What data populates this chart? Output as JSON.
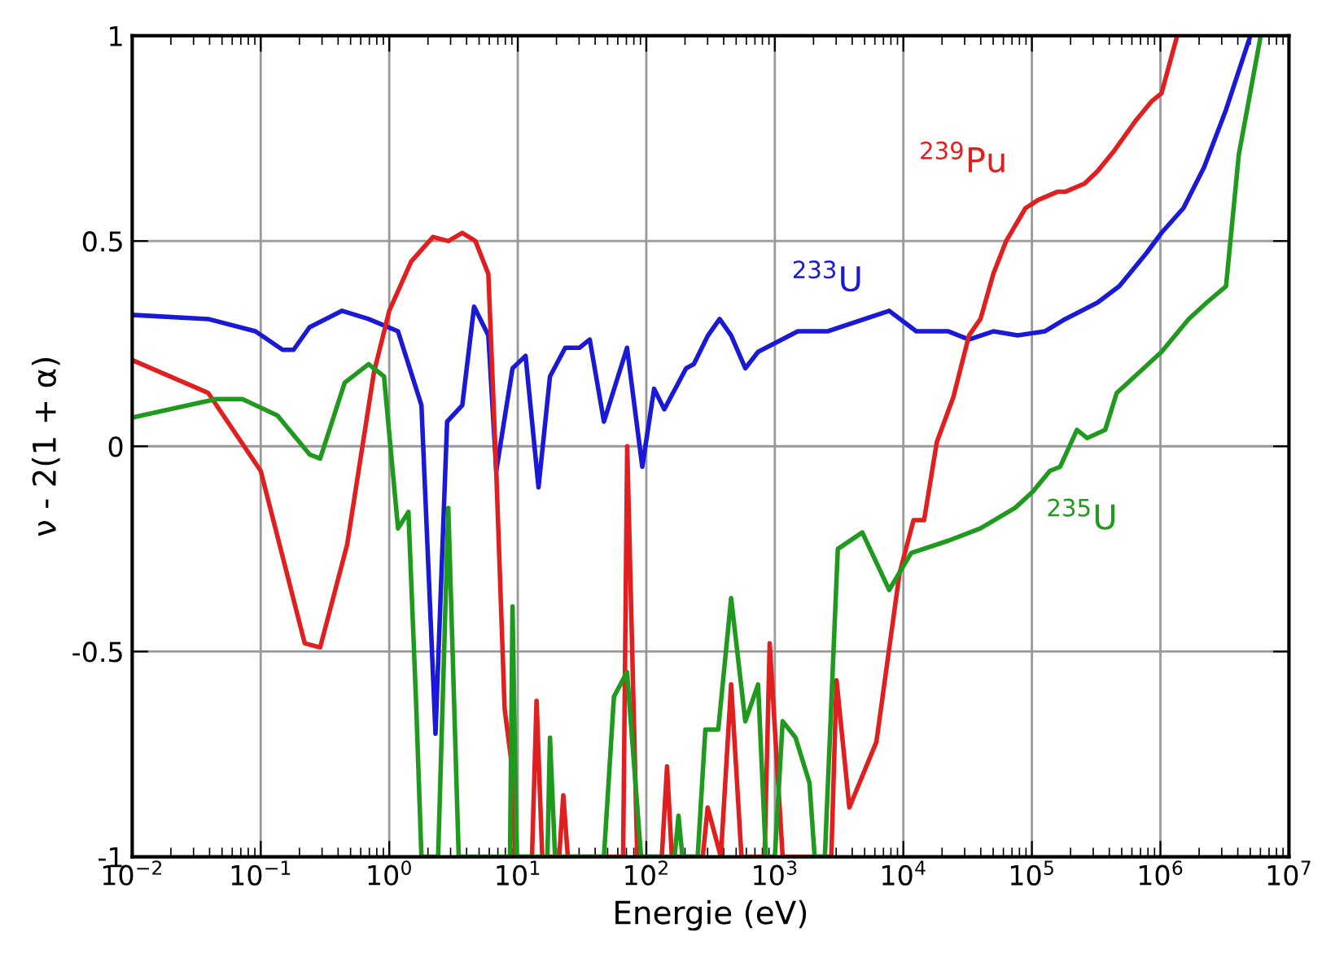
{
  "chart_data": {
    "type": "line",
    "xlabel": "Energie (eV)",
    "ylabel": "ν - 2(1 + α)",
    "log": "x",
    "xlim": [
      0.01,
      10000000
    ],
    "ylim": [
      -1,
      1
    ],
    "xticks": [
      {
        "value": 0.01,
        "label": "10$^{−2}$"
      },
      {
        "value": 0.1,
        "label": "10$^{−1}$"
      },
      {
        "value": 1,
        "label": "10$^{0}$"
      },
      {
        "value": 10,
        "label": "10$^{1}$"
      },
      {
        "value": 100,
        "label": "10$^{2}$"
      },
      {
        "value": 1000,
        "label": "10$^{3}$"
      },
      {
        "value": 10000,
        "label": "10$^{4}$"
      },
      {
        "value": 100000,
        "label": "10$^{5}$"
      },
      {
        "value": 1000000,
        "label": "10$^{6}$"
      },
      {
        "value": 10000000,
        "label": "10$^{7}$"
      }
    ],
    "yticks": [
      -1,
      -0.5,
      0,
      0.5,
      1
    ],
    "grid": true,
    "legend": false,
    "marker": "none",
    "line_style": "solid",
    "series": [
      {
        "name": "$^{233}$U",
        "color": "#1a1ad6",
        "x": [
          0.01,
          0.039,
          0.091,
          0.148,
          0.18,
          0.24,
          0.43,
          0.69,
          1.17,
          1.78,
          2.29,
          2.82,
          3.7,
          4.57,
          5.9,
          6.8,
          9.1,
          11.5,
          14.5,
          17.8,
          23.4,
          30.2,
          36.3,
          46.8,
          70.8,
          93,
          115,
          138,
          204,
          234,
          302,
          372,
          457,
          589,
          741,
          1510,
          2570,
          7760,
          12600,
          22400,
          32400,
          50100,
          77600,
          126000,
          182000,
          324000,
          479000,
          776000,
          1020000,
          1510000,
          2190000,
          3240000,
          5010000
        ],
        "values": [
          0.32,
          0.31,
          0.28,
          0.235,
          0.235,
          0.29,
          0.33,
          0.31,
          0.28,
          0.1,
          -0.7,
          0.06,
          0.1,
          0.34,
          0.27,
          -0.06,
          0.19,
          0.22,
          -0.1,
          0.17,
          0.24,
          0.24,
          0.26,
          0.06,
          0.24,
          -0.05,
          0.14,
          0.09,
          0.19,
          0.2,
          0.27,
          0.31,
          0.27,
          0.19,
          0.23,
          0.28,
          0.28,
          0.33,
          0.28,
          0.28,
          0.26,
          0.28,
          0.27,
          0.28,
          0.31,
          0.35,
          0.39,
          0.47,
          0.52,
          0.58,
          0.68,
          0.82,
          1.0
        ]
      },
      {
        "name": "$^{239}$Pu",
        "color": "#e02020",
        "x": [
          0.01,
          0.039,
          0.1,
          0.22,
          0.29,
          0.47,
          0.76,
          1.0,
          1.48,
          2.19,
          2.88,
          3.7,
          4.68,
          5.9,
          6.8,
          7.9,
          9.1,
          9.5,
          12.9,
          14,
          15.5,
          21,
          22.6,
          24.5,
          66,
          71,
          85,
          132,
          145,
          158,
          275,
          300,
          380,
          457,
          550,
          832,
          912,
          1150,
          2750,
          3020,
          3800,
          6170,
          9330,
          12000,
          14500,
          18200,
          24500,
          32400,
          39800,
          50100,
          63100,
          89100,
          112000,
          158000,
          182000,
          257000,
          324000,
          437000,
          631000,
          851000,
          1020000,
          1350000
        ],
        "values": [
          0.21,
          0.13,
          -0.06,
          -0.48,
          -0.49,
          -0.24,
          0.18,
          0.33,
          0.45,
          0.51,
          0.5,
          0.52,
          0.5,
          0.42,
          -0.06,
          -0.64,
          -0.79,
          -1,
          -1,
          -0.62,
          -1,
          -1,
          -0.85,
          -1,
          -1,
          0.0,
          -1,
          -1,
          -0.78,
          -1,
          -1,
          -0.88,
          -1,
          -0.58,
          -1,
          -1,
          -0.48,
          -1,
          -1,
          -0.57,
          -0.88,
          -0.72,
          -0.31,
          -0.18,
          -0.18,
          0.01,
          0.12,
          0.27,
          0.31,
          0.42,
          0.5,
          0.58,
          0.6,
          0.62,
          0.62,
          0.64,
          0.67,
          0.72,
          0.79,
          0.84,
          0.86,
          1.0
        ]
      },
      {
        "name": "$^{235}$U",
        "color": "#1f9a1f",
        "x": [
          0.01,
          0.045,
          0.072,
          0.135,
          0.24,
          0.29,
          0.45,
          0.69,
          0.91,
          1.17,
          1.41,
          1.62,
          1.78,
          2.4,
          2.88,
          3.47,
          8.7,
          9.1,
          9.8,
          17,
          17.8,
          19.5,
          46.8,
          56,
          70.8,
          91,
          166,
          178,
          191,
          251,
          288,
          363,
          457,
          589,
          741,
          851,
          1000,
          1150,
          1450,
          1860,
          2040,
          2450,
          3090,
          4790,
          7760,
          11500,
          22400,
          39800,
          74100,
          102000,
          138000,
          166000,
          224000,
          269000,
          372000,
          457000,
          631000,
          1020000,
          1660000,
          2290000,
          3240000,
          4070000,
          6030000
        ],
        "values": [
          0.07,
          0.115,
          0.115,
          0.075,
          -0.02,
          -0.03,
          0.155,
          0.2,
          0.17,
          -0.2,
          -0.16,
          -0.63,
          -1,
          -1,
          -0.15,
          -1,
          -1,
          -0.39,
          -1,
          -1,
          -0.71,
          -1,
          -1,
          -0.61,
          -0.55,
          -1,
          -1,
          -0.9,
          -1,
          -1,
          -0.69,
          -0.69,
          -0.37,
          -0.67,
          -0.58,
          -1,
          -1,
          -0.67,
          -0.71,
          -0.82,
          -1,
          -1,
          -0.25,
          -0.21,
          -0.35,
          -0.26,
          -0.23,
          -0.2,
          -0.15,
          -0.11,
          -0.06,
          -0.05,
          0.04,
          0.02,
          0.04,
          0.13,
          0.17,
          0.23,
          0.31,
          0.35,
          0.39,
          0.71,
          1.0
        ]
      }
    ]
  }
}
